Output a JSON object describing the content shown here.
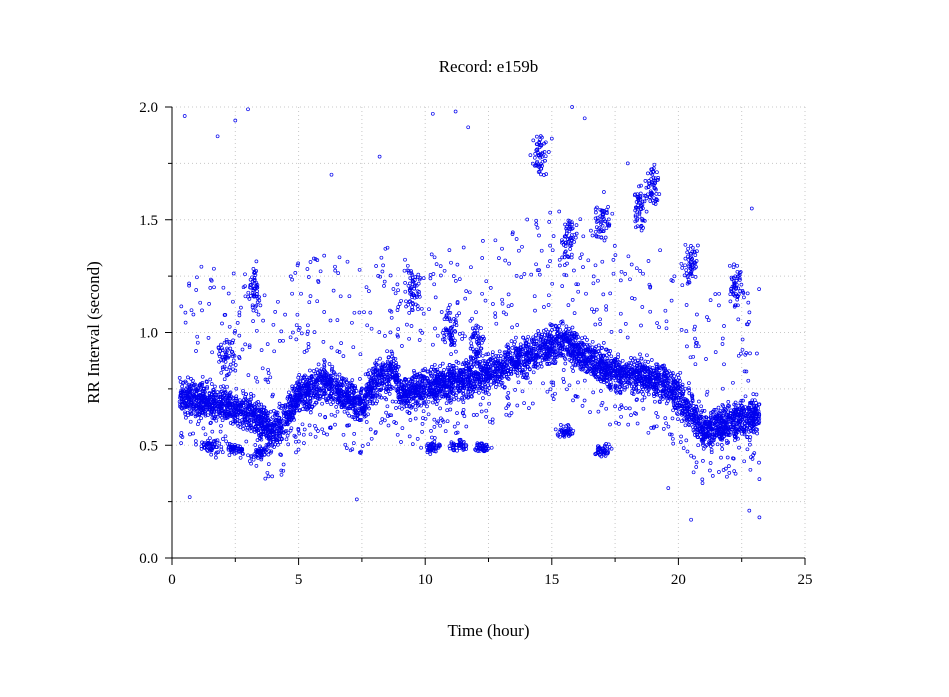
{
  "chart_data": {
    "type": "scatter",
    "title": "Record:  e159b",
    "xlabel": "Time (hour)",
    "ylabel": "RR Interval (second)",
    "xlim": [
      0,
      25
    ],
    "ylim": [
      0.0,
      2.0
    ],
    "xticks": [
      "0",
      "5",
      "10",
      "15",
      "20",
      "25"
    ],
    "yticks": [
      "0.0",
      "0.5",
      "1.0",
      "1.5",
      "2.0"
    ],
    "grid": true,
    "marker": "open-circle",
    "color": "#0000ee",
    "series": [
      {
        "x_range": [
          0.3,
          23.2
        ],
        "baseline": [
          [
            0.3,
            0.72
          ],
          [
            1.0,
            0.7
          ],
          [
            2.0,
            0.68
          ],
          [
            3.0,
            0.65
          ],
          [
            4.0,
            0.56
          ],
          [
            4.5,
            0.62
          ],
          [
            5.0,
            0.72
          ],
          [
            6.0,
            0.78
          ],
          [
            7.0,
            0.72
          ],
          [
            7.5,
            0.68
          ],
          [
            8.0,
            0.78
          ],
          [
            8.8,
            0.84
          ],
          [
            9.0,
            0.72
          ],
          [
            10.0,
            0.76
          ],
          [
            11.0,
            0.78
          ],
          [
            12.0,
            0.8
          ],
          [
            13.0,
            0.84
          ],
          [
            14.0,
            0.9
          ],
          [
            15.0,
            0.94
          ],
          [
            15.5,
            0.96
          ],
          [
            16.5,
            0.88
          ],
          [
            17.5,
            0.82
          ],
          [
            18.5,
            0.8
          ],
          [
            19.5,
            0.78
          ],
          [
            20.5,
            0.66
          ],
          [
            21.0,
            0.56
          ],
          [
            22.0,
            0.6
          ],
          [
            23.2,
            0.64
          ]
        ],
        "band_width": 0.22,
        "outliers": [
          [
            0.5,
            1.96
          ],
          [
            1.8,
            1.87
          ],
          [
            2.5,
            1.94
          ],
          [
            3.0,
            1.99
          ],
          [
            0.7,
            0.27
          ],
          [
            7.3,
            0.26
          ],
          [
            8.2,
            1.78
          ],
          [
            10.3,
            1.97
          ],
          [
            11.2,
            1.98
          ],
          [
            11.7,
            1.91
          ],
          [
            14.5,
            1.84
          ],
          [
            15.0,
            1.86
          ],
          [
            15.8,
            2.0
          ],
          [
            16.3,
            1.95
          ],
          [
            18.0,
            1.75
          ],
          [
            19.6,
            0.31
          ],
          [
            20.5,
            0.17
          ],
          [
            22.8,
            0.21
          ],
          [
            23.2,
            0.18
          ],
          [
            20.6,
            0.38
          ],
          [
            23.2,
            0.35
          ],
          [
            21.6,
            1.12
          ],
          [
            22.9,
            1.55
          ],
          [
            6.3,
            1.7
          ],
          [
            17.9,
            1.26
          ]
        ],
        "upper_clusters": [
          [
            2.2,
            0.9
          ],
          [
            3.2,
            1.2
          ],
          [
            9.5,
            1.2
          ],
          [
            11.0,
            1.0
          ],
          [
            12.0,
            0.95
          ],
          [
            15.7,
            1.42
          ],
          [
            14.5,
            1.78
          ],
          [
            17.0,
            1.5
          ],
          [
            18.5,
            1.55
          ],
          [
            19.0,
            1.65
          ],
          [
            20.5,
            1.3
          ],
          [
            22.3,
            1.2
          ]
        ],
        "lower_clusters": [
          [
            1.5,
            0.5
          ],
          [
            2.5,
            0.48
          ],
          [
            3.5,
            0.47
          ],
          [
            10.3,
            0.49
          ],
          [
            11.3,
            0.5
          ],
          [
            12.3,
            0.49
          ],
          [
            15.5,
            0.56
          ],
          [
            17.0,
            0.48
          ]
        ]
      }
    ]
  }
}
